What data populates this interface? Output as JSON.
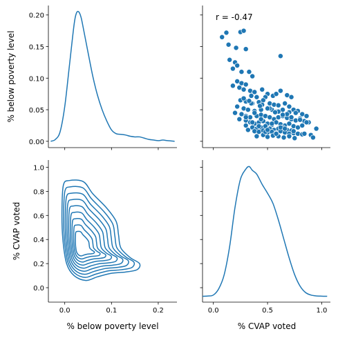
{
  "chart_data": {
    "type": "pairgrid",
    "variables": [
      "% below poverty level",
      "% CVAP voted"
    ],
    "color": "#1f77b4",
    "axes": {
      "poverty": {
        "lim": [
          -0.035,
          0.24
        ],
        "ticks": [
          0.0,
          0.1,
          0.2
        ],
        "tick_labels": [
          "0.0",
          "0.1",
          "0.2"
        ]
      },
      "cvap": {
        "lim": [
          -0.1,
          1.08
        ],
        "ticks": [
          0.0,
          0.5,
          1.0
        ],
        "tick_labels": [
          "0.0",
          "0.5",
          "1.0"
        ]
      },
      "kde_poverty_density": {
        "lim": [
          -0.01,
          0.215
        ],
        "ticks": [
          0.0,
          0.05,
          0.1,
          0.15,
          0.2
        ],
        "tick_labels": [
          "0.00",
          "0.05",
          "0.10",
          "0.15",
          "0.20"
        ]
      },
      "cvap_y": {
        "lim": [
          -0.12,
          1.06
        ],
        "ticks": [
          0.0,
          0.2,
          0.4,
          0.6,
          0.8,
          1.0
        ],
        "tick_labels": [
          "0.0",
          "0.2",
          "0.4",
          "0.6",
          "0.8",
          "1.0"
        ]
      }
    },
    "labels": {
      "row0_ylabel": "% below poverty level",
      "row1_ylabel": "% CVAP voted",
      "col0_xlabel": "% below poverty level",
      "col1_xlabel": "% CVAP voted"
    },
    "annotation": "r = -0.47",
    "poverty_kde": {
      "x": [
        -0.03,
        -0.02,
        -0.01,
        0.0,
        0.01,
        0.02,
        0.025,
        0.03,
        0.035,
        0.04,
        0.05,
        0.06,
        0.07,
        0.08,
        0.09,
        0.1,
        0.11,
        0.12,
        0.13,
        0.14,
        0.15,
        0.16,
        0.17,
        0.18,
        0.19,
        0.2,
        0.21,
        0.22,
        0.235
      ],
      "y": [
        0.0,
        0.003,
        0.015,
        0.055,
        0.12,
        0.185,
        0.203,
        0.205,
        0.196,
        0.178,
        0.14,
        0.103,
        0.073,
        0.05,
        0.032,
        0.018,
        0.012,
        0.011,
        0.01,
        0.008,
        0.007,
        0.007,
        0.005,
        0.003,
        0.002,
        0.001,
        0.002,
        0.001,
        0.0
      ]
    },
    "cvap_kde": {
      "x": [
        -0.1,
        -0.05,
        0.0,
        0.05,
        0.1,
        0.15,
        0.2,
        0.25,
        0.3,
        0.33,
        0.36,
        0.4,
        0.45,
        0.5,
        0.55,
        0.6,
        0.65,
        0.7,
        0.75,
        0.8,
        0.85,
        0.9,
        0.95,
        1.0,
        1.05
      ],
      "y": [
        0.0,
        0.002,
        0.01,
        0.06,
        0.17,
        0.39,
        0.7,
        0.92,
        1.0,
        1.02,
        0.99,
        0.96,
        0.88,
        0.81,
        0.73,
        0.6,
        0.45,
        0.3,
        0.17,
        0.08,
        0.03,
        0.01,
        0.003,
        0.001,
        0.0
      ]
    },
    "scatter": {
      "x": [
        0.08,
        0.12,
        0.14,
        0.21,
        0.25,
        0.28,
        0.3,
        0.15,
        0.2,
        0.22,
        0.18,
        0.26,
        0.33,
        0.36,
        0.62,
        0.22,
        0.26,
        0.3,
        0.18,
        0.24,
        0.28,
        0.34,
        0.38,
        0.45,
        0.5,
        0.35,
        0.4,
        0.48,
        0.55,
        0.58,
        0.62,
        0.68,
        0.72,
        0.25,
        0.3,
        0.36,
        0.42,
        0.46,
        0.52,
        0.56,
        0.6,
        0.66,
        0.7,
        0.74,
        0.78,
        0.22,
        0.28,
        0.32,
        0.38,
        0.44,
        0.5,
        0.54,
        0.58,
        0.64,
        0.7,
        0.76,
        0.82,
        0.86,
        0.2,
        0.26,
        0.3,
        0.34,
        0.4,
        0.44,
        0.48,
        0.52,
        0.56,
        0.6,
        0.64,
        0.68,
        0.72,
        0.76,
        0.8,
        0.84,
        0.88,
        0.24,
        0.3,
        0.34,
        0.38,
        0.42,
        0.46,
        0.5,
        0.54,
        0.58,
        0.62,
        0.66,
        0.7,
        0.74,
        0.78,
        0.82,
        0.3,
        0.36,
        0.4,
        0.44,
        0.48,
        0.52,
        0.56,
        0.6,
        0.64,
        0.68,
        0.72,
        0.32,
        0.38,
        0.42,
        0.46,
        0.5,
        0.54,
        0.58,
        0.62,
        0.66,
        0.7,
        0.74,
        0.78,
        0.82,
        0.9,
        0.4,
        0.46,
        0.5,
        0.55,
        0.6,
        0.65,
        0.7,
        0.75,
        0.35,
        0.45,
        0.52,
        0.6,
        0.68,
        0.28,
        0.33,
        0.43,
        0.5,
        0.57,
        0.64,
        0.72,
        0.8,
        0.86,
        0.95,
        0.38,
        0.44,
        0.54,
        0.62,
        0.48,
        0.58,
        0.66,
        0.74,
        0.84,
        0.92,
        0.3,
        0.36,
        0.42,
        0.5
      ],
      "y": [
        0.165,
        0.172,
        0.153,
        0.148,
        0.173,
        0.175,
        0.146,
        0.129,
        0.125,
        0.12,
        0.115,
        0.11,
        0.11,
        0.103,
        0.135,
        0.095,
        0.092,
        0.09,
        0.088,
        0.085,
        0.082,
        0.08,
        0.078,
        0.082,
        0.075,
        0.072,
        0.07,
        0.07,
        0.072,
        0.075,
        0.08,
        0.073,
        0.07,
        0.065,
        0.063,
        0.06,
        0.062,
        0.065,
        0.06,
        0.058,
        0.057,
        0.06,
        0.055,
        0.05,
        0.048,
        0.055,
        0.052,
        0.05,
        0.048,
        0.05,
        0.053,
        0.05,
        0.047,
        0.05,
        0.046,
        0.045,
        0.043,
        0.04,
        0.045,
        0.043,
        0.04,
        0.038,
        0.04,
        0.042,
        0.04,
        0.038,
        0.035,
        0.038,
        0.04,
        0.037,
        0.035,
        0.033,
        0.036,
        0.032,
        0.03,
        0.035,
        0.033,
        0.03,
        0.028,
        0.03,
        0.032,
        0.028,
        0.026,
        0.03,
        0.027,
        0.025,
        0.028,
        0.024,
        0.022,
        0.025,
        0.025,
        0.022,
        0.02,
        0.022,
        0.024,
        0.02,
        0.018,
        0.02,
        0.022,
        0.018,
        0.017,
        0.018,
        0.016,
        0.015,
        0.017,
        0.014,
        0.015,
        0.013,
        0.016,
        0.014,
        0.012,
        0.013,
        0.012,
        0.011,
        0.01,
        0.008,
        0.01,
        0.007,
        0.009,
        0.008,
        0.006,
        0.008,
        0.005,
        0.06,
        0.058,
        0.052,
        0.047,
        0.043,
        0.068,
        0.064,
        0.056,
        0.052,
        0.046,
        0.042,
        0.038,
        0.034,
        0.03,
        0.02,
        0.045,
        0.035,
        0.028,
        0.022,
        0.015,
        0.012,
        0.02,
        0.016,
        0.012,
        0.006,
        0.038,
        0.03,
        0.024,
        0.018
      ]
    },
    "bivariate_kde": {
      "mode_x": 0.032,
      "mode_y": 0.33,
      "levels": 9,
      "outer_contour": [
        [
          -0.003,
          0.85
        ],
        [
          0.01,
          0.89
        ],
        [
          0.04,
          0.88
        ],
        [
          0.06,
          0.78
        ],
        [
          0.09,
          0.66
        ],
        [
          0.11,
          0.55
        ],
        [
          0.115,
          0.44
        ],
        [
          0.12,
          0.33
        ],
        [
          0.14,
          0.25
        ],
        [
          0.16,
          0.2
        ],
        [
          0.155,
          0.15
        ],
        [
          0.13,
          0.13
        ],
        [
          0.1,
          0.12
        ],
        [
          0.07,
          0.09
        ],
        [
          0.045,
          0.06
        ],
        [
          0.02,
          0.1
        ],
        [
          0.004,
          0.2
        ],
        [
          -0.004,
          0.4
        ],
        [
          -0.006,
          0.62
        ],
        [
          -0.003,
          0.85
        ]
      ]
    }
  }
}
